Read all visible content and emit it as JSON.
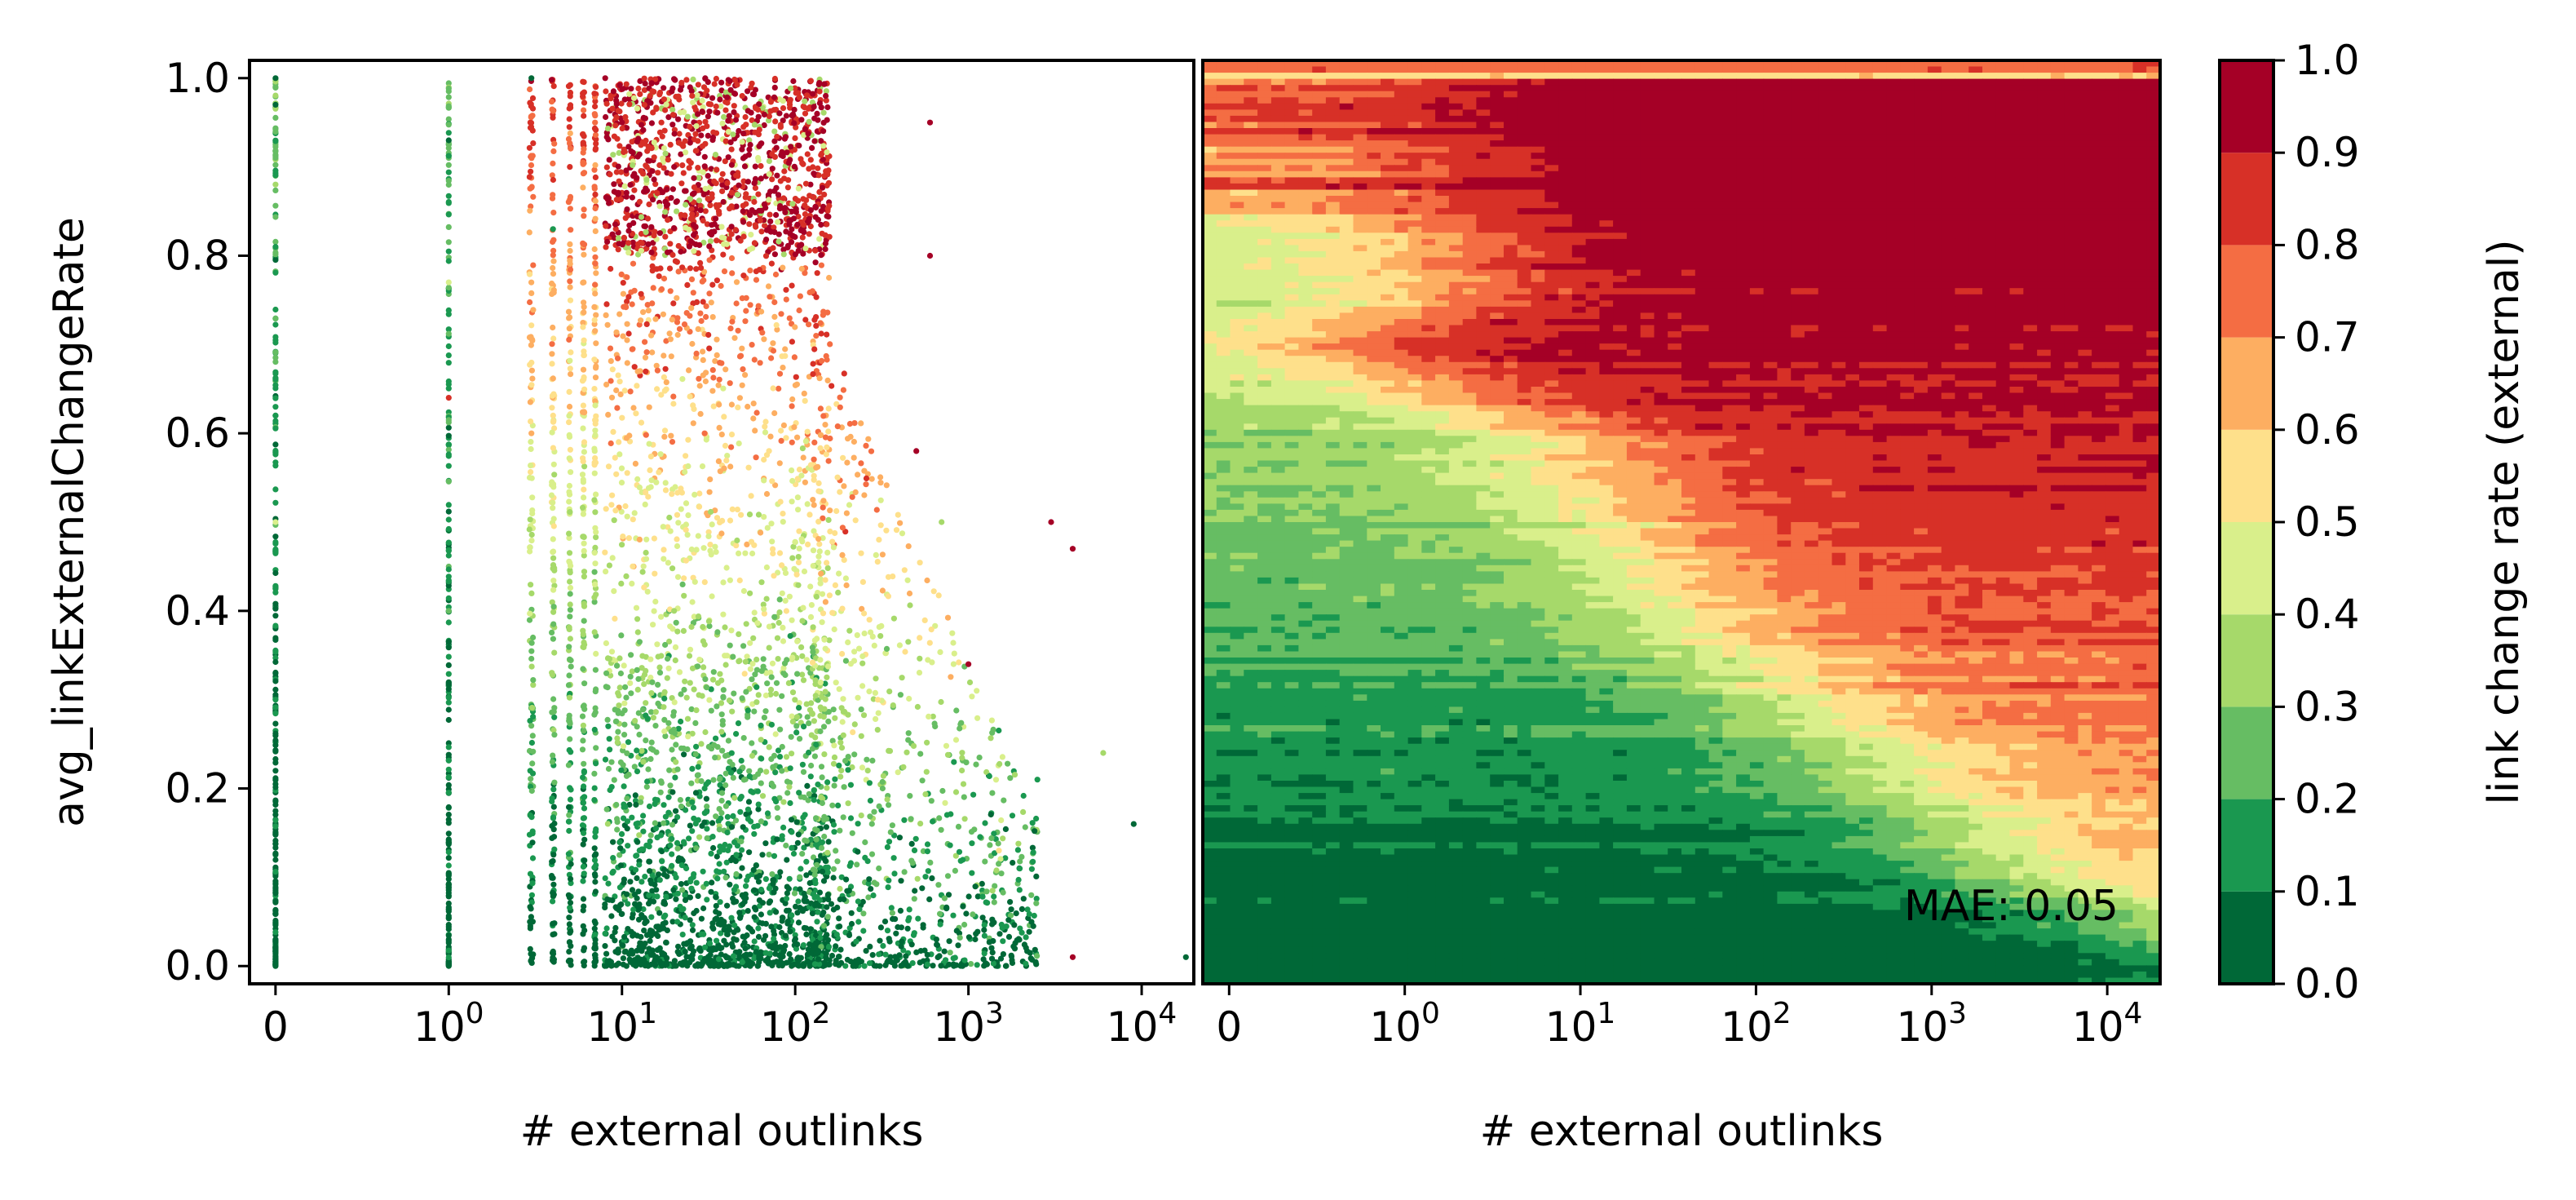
{
  "figure": {
    "colors": [
      "#006837",
      "#1a9850",
      "#66bd63",
      "#a6d96a",
      "#d9ef8b",
      "#fee08b",
      "#fdae61",
      "#f46d43",
      "#d73027",
      "#a50026"
    ]
  },
  "chart_data": [
    {
      "type": "scatter",
      "xlabel": "# external outlinks",
      "ylabel": "avg_linkExternalChangeRate",
      "x_scale": "symlog",
      "xlim": [
        -0.15,
        20000
      ],
      "ylim": [
        -0.02,
        1.02
      ],
      "x_ticks": [
        {
          "value": 0,
          "label": "0"
        },
        {
          "value": 1,
          "label": "10^0"
        },
        {
          "value": 10,
          "label": "10^1"
        },
        {
          "value": 100,
          "label": "10^2"
        },
        {
          "value": 1000,
          "label": "10^3"
        },
        {
          "value": 10000,
          "label": "10^4"
        }
      ],
      "y_ticks": [
        {
          "value": 0.0,
          "label": "0.0"
        },
        {
          "value": 0.2,
          "label": "0.2"
        },
        {
          "value": 0.4,
          "label": "0.4"
        },
        {
          "value": 0.6,
          "label": "0.6"
        },
        {
          "value": 0.8,
          "label": "0.8"
        },
        {
          "value": 1.0,
          "label": "1.0"
        }
      ],
      "color_encodes": "link change rate (external)",
      "points_sample": [
        {
          "x": 0,
          "y": 1.0,
          "c": 0.05
        },
        {
          "x": 0,
          "y": 0.97,
          "c": 0.05
        },
        {
          "x": 0,
          "y": 0.81,
          "c": 0.1
        },
        {
          "x": 0,
          "y": 0.62,
          "c": 0.15
        },
        {
          "x": 0,
          "y": 0.5,
          "c": 0.45
        },
        {
          "x": 0,
          "y": 0.3,
          "c": 0.1
        },
        {
          "x": 1,
          "y": 0.93,
          "c": 0.05
        },
        {
          "x": 1,
          "y": 0.77,
          "c": 0.45
        },
        {
          "x": 1,
          "y": 0.64,
          "c": 0.85
        },
        {
          "x": 1,
          "y": 0.4,
          "c": 0.2
        },
        {
          "x": 3,
          "y": 1.0,
          "c": 0.05
        },
        {
          "x": 3,
          "y": 0.6,
          "c": 0.6
        },
        {
          "x": 4,
          "y": 0.83,
          "c": 0.15
        },
        {
          "x": 5,
          "y": 0.9,
          "c": 0.8
        },
        {
          "x": 8,
          "y": 1.0,
          "c": 0.95
        },
        {
          "x": 10,
          "y": 0.95,
          "c": 0.95
        },
        {
          "x": 20,
          "y": 0.9,
          "c": 0.95
        },
        {
          "x": 50,
          "y": 0.85,
          "c": 0.9
        },
        {
          "x": 150,
          "y": 0.98,
          "c": 0.95
        },
        {
          "x": 30,
          "y": 0.6,
          "c": 0.7
        },
        {
          "x": 20,
          "y": 0.4,
          "c": 0.35
        },
        {
          "x": 30,
          "y": 0.2,
          "c": 0.1
        },
        {
          "x": 600,
          "y": 0.95,
          "c": 0.9
        },
        {
          "x": 600,
          "y": 0.8,
          "c": 0.95
        },
        {
          "x": 500,
          "y": 0.58,
          "c": 0.95
        },
        {
          "x": 700,
          "y": 0.5,
          "c": 0.3
        },
        {
          "x": 1000,
          "y": 0.34,
          "c": 0.9
        },
        {
          "x": 3000,
          "y": 0.5,
          "c": 0.95
        },
        {
          "x": 4000,
          "y": 0.47,
          "c": 0.95
        },
        {
          "x": 6000,
          "y": 0.24,
          "c": 0.35
        },
        {
          "x": 2500,
          "y": 0.21,
          "c": 0.1
        },
        {
          "x": 9000,
          "y": 0.16,
          "c": 0.05
        },
        {
          "x": 4000,
          "y": 0.01,
          "c": 0.95
        },
        {
          "x": 18000,
          "y": 0.01,
          "c": 0.05
        },
        {
          "x": 1500,
          "y": 0.13,
          "c": 0.5
        },
        {
          "x": 300,
          "y": 0.3,
          "c": 0.5
        }
      ]
    },
    {
      "type": "heatmap",
      "xlabel": "# external outlinks",
      "x_scale": "symlog",
      "xlim": [
        -0.15,
        20000
      ],
      "ylim": [
        -0.02,
        1.02
      ],
      "x_ticks": [
        {
          "value": 0,
          "label": "0"
        },
        {
          "value": 1,
          "label": "10^0"
        },
        {
          "value": 10,
          "label": "10^1"
        },
        {
          "value": 100,
          "label": "10^2"
        },
        {
          "value": 1000,
          "label": "10^3"
        },
        {
          "value": 10000,
          "label": "10^4"
        }
      ],
      "annotation": "MAE: 0.05",
      "boundary_profile": [
        {
          "y": 1.0,
          "x_at_0.5": 1.5
        },
        {
          "y": 0.85,
          "x_at_0.5": 1.5
        },
        {
          "y": 0.75,
          "x_at_0.5": 2
        },
        {
          "y": 0.7,
          "x_at_0.5": 0.3
        },
        {
          "y": 0.6,
          "x_at_0.5": 8
        },
        {
          "y": 0.5,
          "x_at_0.5": 20
        },
        {
          "y": 0.4,
          "x_at_0.5": 40
        },
        {
          "y": 0.3,
          "x_at_0.5": 150
        },
        {
          "y": 0.2,
          "x_at_0.5": 700
        },
        {
          "y": 0.1,
          "x_at_0.5": 3000
        },
        {
          "y": 0.0,
          "x_at_0.5": 100000
        }
      ]
    }
  ],
  "colorbar": {
    "label": "link change rate (external)",
    "levels": [
      0.0,
      0.1,
      0.2,
      0.3,
      0.4,
      0.5,
      0.6,
      0.7,
      0.8,
      0.9,
      1.0
    ],
    "tick_labels": [
      "0.0",
      "0.1",
      "0.2",
      "0.3",
      "0.4",
      "0.5",
      "0.6",
      "0.7",
      "0.8",
      "0.9",
      "1.0"
    ]
  }
}
